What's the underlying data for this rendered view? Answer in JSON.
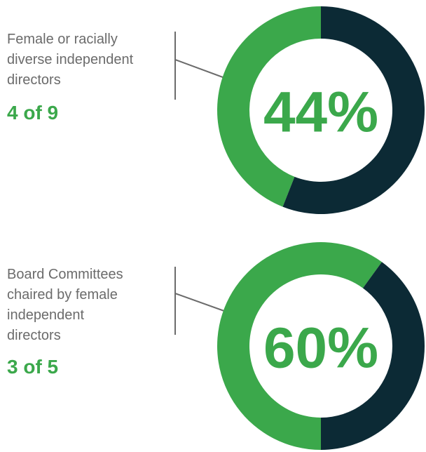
{
  "chart_data": [
    {
      "type": "donut",
      "label_lines": [
        "Female or racially",
        "diverse independent",
        "directors"
      ],
      "ratio": "4 of 9",
      "values": [
        44,
        56
      ],
      "value_labels": [
        "44%",
        null
      ],
      "colors": [
        "#3ba84b",
        "#0c2a35"
      ]
    },
    {
      "type": "donut",
      "label_lines": [
        "Board Committees",
        "chaired by female",
        "independent",
        "directors"
      ],
      "ratio": "3 of 5",
      "values": [
        60,
        40
      ],
      "value_labels": [
        "60%",
        null
      ],
      "colors": [
        "#3ba84b",
        "#0c2a35"
      ]
    }
  ]
}
